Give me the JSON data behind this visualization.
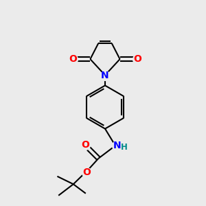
{
  "background_color": "#ebebeb",
  "bond_color": "#000000",
  "oxygen_color": "#ff0000",
  "nitrogen_mal_color": "#0000ff",
  "nitrogen_nh_color": "#008b8b",
  "bond_lw": 1.5,
  "figsize": [
    3.0,
    3.0
  ],
  "dpi": 100,
  "xlim": [
    0,
    10
  ],
  "ylim": [
    0,
    10
  ]
}
